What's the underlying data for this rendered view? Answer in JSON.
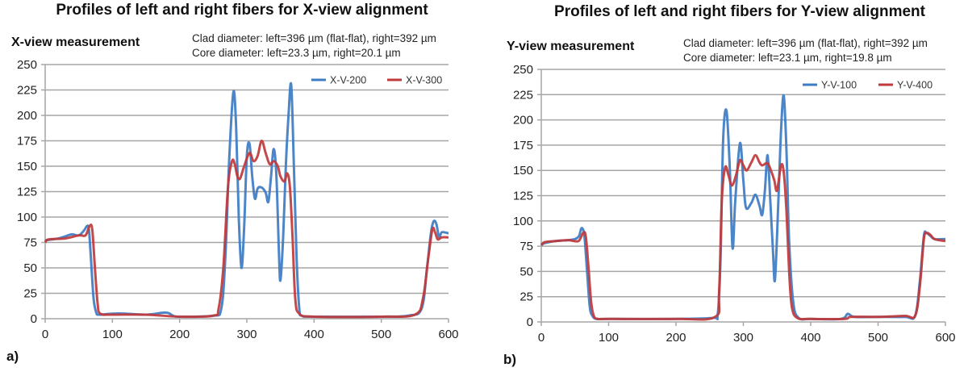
{
  "chart_data": [
    {
      "type": "line",
      "panel_label": "a)",
      "title": "Profiles of left and right fibers for X-view alignment",
      "subtitle": "X-view measurement",
      "annotations": [
        "Clad diameter: left=396 µm (flat-flat), right=392 µm",
        "Core diameter: left=23.3 µm, right=20.1 µm"
      ],
      "xlim": [
        0,
        600
      ],
      "ylim": [
        0,
        250
      ],
      "xticks": [
        0,
        100,
        200,
        300,
        400,
        500,
        600
      ],
      "yticks": [
        0,
        25,
        50,
        75,
        100,
        125,
        150,
        175,
        200,
        225,
        250
      ],
      "grid": "horizontal",
      "legend": "top-right",
      "series": [
        {
          "name": "X-V-200",
          "color": "#3d7cc4",
          "x": [
            0,
            10,
            20,
            30,
            40,
            50,
            58,
            62,
            65,
            68,
            72,
            76,
            80,
            100,
            120,
            150,
            180,
            190,
            200,
            250,
            262,
            268,
            274,
            280,
            284,
            288,
            292,
            296,
            300,
            304,
            308,
            312,
            316,
            322,
            328,
            332,
            336,
            340,
            344,
            348,
            350,
            354,
            358,
            362,
            366,
            370,
            374,
            378,
            382,
            400,
            500,
            540,
            560,
            568,
            574,
            578,
            582,
            586,
            590,
            600
          ],
          "y": [
            77,
            78,
            79,
            81,
            83,
            82,
            87,
            91,
            88,
            60,
            20,
            6,
            4,
            5,
            5,
            4,
            6,
            3,
            2,
            3,
            10,
            60,
            160,
            223,
            190,
            100,
            50,
            90,
            160,
            172,
            140,
            118,
            128,
            129,
            124,
            115,
            140,
            167,
            140,
            60,
            38,
            80,
            150,
            200,
            230,
            150,
            60,
            10,
            3,
            2,
            2,
            3,
            10,
            50,
            85,
            96,
            93,
            80,
            85,
            84
          ]
        },
        {
          "name": "X-V-300",
          "color": "#c0393b",
          "x": [
            0,
            5,
            30,
            50,
            60,
            66,
            70,
            74,
            78,
            82,
            100,
            150,
            200,
            250,
            258,
            265,
            272,
            278,
            282,
            286,
            290,
            296,
            304,
            310,
            316,
            322,
            328,
            334,
            340,
            346,
            350,
            356,
            360,
            364,
            368,
            372,
            378,
            400,
            500,
            550,
            562,
            570,
            576,
            580,
            584,
            590,
            600
          ],
          "y": [
            75,
            78,
            79,
            82,
            82,
            91,
            88,
            50,
            15,
            5,
            4,
            4,
            2,
            3,
            10,
            50,
            130,
            155,
            152,
            140,
            138,
            150,
            163,
            155,
            160,
            175,
            163,
            152,
            155,
            150,
            140,
            135,
            143,
            130,
            80,
            20,
            5,
            2,
            2,
            4,
            20,
            60,
            88,
            85,
            78,
            80,
            80
          ]
        }
      ]
    },
    {
      "type": "line",
      "panel_label": "b)",
      "title": "Profiles of left and right fibers for Y-view alignment",
      "subtitle": "Y-view measurement",
      "annotations": [
        "Clad diameter: left=396 µm (flat-flat), right=392 µm",
        "Core diameter: left=23.1 µm, right=19.8 µm"
      ],
      "xlim": [
        0,
        600
      ],
      "ylim": [
        0,
        250
      ],
      "xticks": [
        0,
        100,
        200,
        300,
        400,
        500,
        600
      ],
      "yticks": [
        0,
        25,
        50,
        75,
        100,
        125,
        150,
        175,
        200,
        225,
        250
      ],
      "grid": "horizontal",
      "legend": "top-right",
      "series": [
        {
          "name": "Y-V-100",
          "color": "#3d7cc4",
          "x": [
            0,
            5,
            20,
            40,
            50,
            56,
            60,
            64,
            68,
            72,
            76,
            82,
            100,
            200,
            255,
            262,
            266,
            270,
            275,
            280,
            284,
            288,
            295,
            300,
            304,
            312,
            318,
            324,
            328,
            332,
            336,
            340,
            344,
            347,
            352,
            356,
            360,
            364,
            368,
            374,
            382,
            400,
            445,
            455,
            465,
            500,
            540,
            555,
            562,
            568,
            572,
            578,
            584,
            600
          ],
          "y": [
            76,
            78,
            80,
            81,
            82,
            85,
            93,
            85,
            50,
            15,
            6,
            3,
            3,
            3,
            4,
            8,
            60,
            180,
            209,
            150,
            73,
            120,
            177,
            140,
            113,
            118,
            126,
            115,
            106,
            130,
            165,
            120,
            70,
            42,
            120,
            190,
            224,
            170,
            80,
            20,
            4,
            3,
            3,
            8,
            5,
            5,
            5,
            6,
            40,
            85,
            88,
            85,
            82,
            82
          ]
        },
        {
          "name": "Y-V-400",
          "color": "#c0393b",
          "x": [
            0,
            5,
            20,
            40,
            55,
            62,
            66,
            70,
            74,
            78,
            84,
            100,
            200,
            258,
            264,
            268,
            273,
            278,
            283,
            289,
            295,
            300,
            305,
            312,
            318,
            324,
            328,
            336,
            342,
            346,
            350,
            356,
            360,
            364,
            368,
            372,
            380,
            400,
            450,
            460,
            500,
            540,
            555,
            562,
            568,
            572,
            578,
            584,
            600
          ],
          "y": [
            76,
            79,
            80,
            81,
            80,
            88,
            85,
            55,
            20,
            6,
            3,
            3,
            3,
            5,
            30,
            120,
            153,
            145,
            135,
            145,
            160,
            155,
            150,
            158,
            165,
            158,
            155,
            157,
            148,
            140,
            130,
            155,
            148,
            110,
            50,
            15,
            4,
            3,
            3,
            5,
            5,
            6,
            6,
            35,
            82,
            88,
            86,
            82,
            80
          ]
        }
      ]
    }
  ]
}
